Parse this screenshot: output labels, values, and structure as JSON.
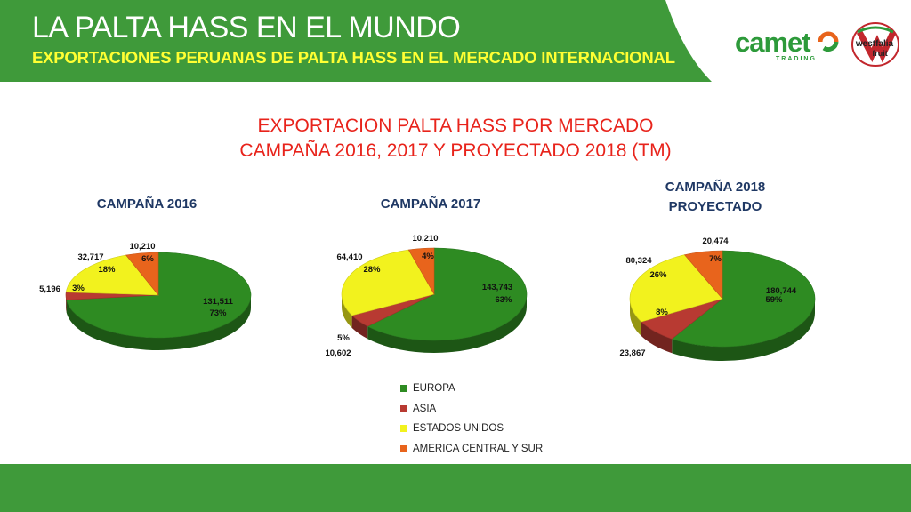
{
  "header": {
    "title": "LA PALTA HASS EN EL MUNDO",
    "subtitle": "EXPORTACIONES PERUANAS DE PALTA HASS EN EL MERCADO INTERNACIONAL"
  },
  "logos": {
    "camet": "camet",
    "camet_tag": "TRADING",
    "westfalia_line1": "westfalia",
    "westfalia_line2": "fruit"
  },
  "colors": {
    "header_green": "#3f9a3a",
    "title_red": "#e8231b",
    "europa": "#2e8b22",
    "asia": "#b83a32",
    "usa": "#f2f21e",
    "america": "#e8641c"
  },
  "chart_data": {
    "type": "pie",
    "title_line1": "EXPORTACION PALTA HASS POR MERCADO",
    "title_line2": "CAMPAÑA 2016, 2017 Y PROYECTADO 2018 (TM)",
    "categories": [
      "EUROPA",
      "ASIA",
      "ESTADOS UNIDOS",
      "AMERICA CENTRAL Y SUR"
    ],
    "legend_position": "bottom-center",
    "pies": [
      {
        "title_line1": "CAMPAÑA 2016",
        "title_line2": "",
        "values": [
          131511,
          5196,
          32717,
          10210
        ],
        "value_labels": [
          "131,511",
          "5,196",
          "32,717",
          "10,210"
        ],
        "pct_labels": [
          "73%",
          "3%",
          "18%",
          "6%"
        ]
      },
      {
        "title_line1": "CAMPAÑA 2017",
        "title_line2": "",
        "values": [
          143743,
          10602,
          64410,
          10210
        ],
        "value_labels": [
          "143,743",
          "10,602",
          "64,410",
          "10,210"
        ],
        "pct_labels": [
          "63%",
          "5%",
          "28%",
          "4%"
        ]
      },
      {
        "title_line1": "CAMPAÑA 2018",
        "title_line2": "PROYECTADO",
        "values": [
          180744,
          23867,
          80324,
          20474
        ],
        "value_labels": [
          "180,744",
          "23,867",
          "80,324",
          "20,474"
        ],
        "pct_labels": [
          "59%",
          "8%",
          "26%",
          "7%"
        ]
      }
    ]
  }
}
